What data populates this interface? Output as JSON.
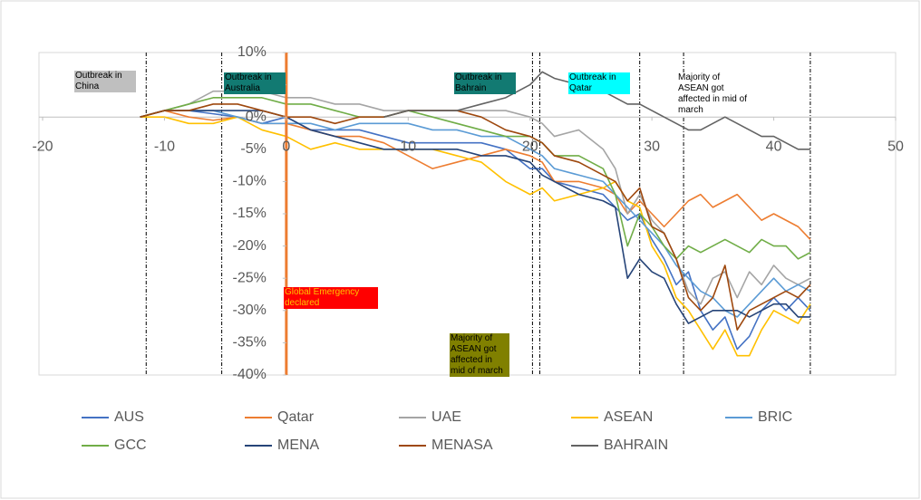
{
  "chart_data": {
    "type": "line",
    "x": [
      -12,
      -10,
      -8,
      -6,
      -4,
      -2,
      0,
      2,
      4,
      6,
      8,
      10,
      12,
      14,
      16,
      18,
      20,
      21,
      22,
      24,
      26,
      27,
      28,
      29,
      30,
      31,
      32,
      33,
      34,
      35,
      36,
      37,
      38,
      39,
      40,
      41,
      42,
      43
    ],
    "series": [
      {
        "name": "AUS",
        "color": "#4472c4",
        "values": [
          0,
          1,
          1,
          0.5,
          0,
          -1,
          0,
          -2,
          -2,
          -2,
          -3,
          -4,
          -4,
          -4,
          -4,
          -5,
          -8,
          -8,
          -10,
          -11,
          -12,
          -14,
          -16,
          -15,
          -19,
          -22,
          -26,
          -24,
          -30,
          -33,
          -31,
          -36,
          -34,
          -30,
          -28,
          -30,
          -28,
          -30
        ]
      },
      {
        "name": "Qatar",
        "color": "#ed7d31",
        "values": [
          0,
          1,
          0,
          -0.5,
          0,
          -1,
          -1,
          -2,
          -3,
          -3,
          -4,
          -6,
          -8,
          -7,
          -6,
          -5,
          -6,
          -7,
          -10,
          -10,
          -11,
          -12,
          -15,
          -13,
          -15,
          -17,
          -15,
          -13,
          -12,
          -14,
          -13,
          -12,
          -14,
          -16,
          -15,
          -16,
          -17,
          -19
        ]
      },
      {
        "name": "UAE",
        "color": "#a5a5a5",
        "values": [
          0,
          1,
          2,
          4,
          4,
          4,
          3,
          3,
          2,
          2,
          1,
          1,
          1,
          1,
          1,
          1,
          0,
          -1,
          -3,
          -2,
          -5,
          -8,
          -15,
          -12,
          -16,
          -18,
          -22,
          -27,
          -29,
          -25,
          -24,
          -28,
          -24,
          -26,
          -23,
          -25,
          -26,
          -25
        ]
      },
      {
        "name": "ASEAN",
        "color": "#ffc000",
        "values": [
          0,
          0,
          -1,
          -1,
          0,
          -2,
          -3,
          -5,
          -4,
          -5,
          -5,
          -5,
          -5,
          -6,
          -7,
          -10,
          -12,
          -11,
          -13,
          -12,
          -11,
          -10,
          -13,
          -14,
          -20,
          -23,
          -28,
          -30,
          -33,
          -36,
          -33,
          -37,
          -37,
          -33,
          -30,
          -31,
          -32,
          -29
        ]
      },
      {
        "name": "BRIC",
        "color": "#5b9bd5",
        "values": [
          0,
          1,
          1,
          1,
          0,
          -1,
          -1,
          -1,
          -2,
          -1,
          -1,
          -1,
          -2,
          -2,
          -3,
          -3,
          -5,
          -6,
          -8,
          -9,
          -10,
          -12,
          -14,
          -16,
          -18,
          -20,
          -23,
          -25,
          -27,
          -28,
          -30,
          -31,
          -29,
          -27,
          -25,
          -27,
          -26,
          -27
        ]
      },
      {
        "name": "GCC",
        "color": "#70ad47",
        "values": [
          0,
          1,
          2,
          3,
          3,
          3,
          2,
          2,
          1,
          0,
          0,
          1,
          0,
          -1,
          -2,
          -3,
          -3,
          -4,
          -6,
          -6,
          -8,
          -12,
          -20,
          -15,
          -17,
          -20,
          -22,
          -20,
          -21,
          -20,
          -19,
          -20,
          -21,
          -19,
          -20,
          -20,
          -22,
          -21
        ]
      },
      {
        "name": "MENA",
        "color": "#264478",
        "values": [
          0,
          1,
          1,
          1,
          1,
          1,
          0,
          -2,
          -3,
          -4,
          -5,
          -5,
          -5,
          -5,
          -6,
          -6,
          -7,
          -9,
          -10,
          -12,
          -13,
          -14,
          -25,
          -22,
          -24,
          -25,
          -29,
          -32,
          -31,
          -30,
          -30,
          -30,
          -31,
          -30,
          -29,
          -29,
          -31,
          -31
        ]
      },
      {
        "name": "MENASA",
        "color": "#9e480e",
        "values": [
          0,
          1,
          1,
          2,
          2,
          1,
          0,
          0,
          -1,
          0,
          0,
          1,
          1,
          1,
          0,
          -2,
          -3,
          -4,
          -6,
          -7,
          -9,
          -10,
          -13,
          -11,
          -17,
          -18,
          -22,
          -28,
          -30,
          -28,
          -23,
          -33,
          -30,
          -29,
          -28,
          -27,
          -28,
          -26
        ]
      },
      {
        "name": "BAHRAIN",
        "color": "#636363",
        "values": [
          null,
          null,
          null,
          null,
          null,
          null,
          null,
          null,
          null,
          null,
          0,
          1,
          1,
          1,
          2,
          3,
          5,
          7,
          6,
          5,
          4,
          3,
          2,
          2,
          1,
          0,
          -1,
          -2,
          -2,
          -1,
          0,
          -1,
          -2,
          -3,
          -3,
          -4,
          -5,
          -5
        ]
      }
    ],
    "xlim": [
      -20,
      50
    ],
    "xticks": [
      -20,
      -10,
      0,
      10,
      20,
      30,
      40,
      50
    ],
    "ylim": [
      -40,
      10
    ],
    "yticks": [
      {
        "value": -40,
        "label": "-40%"
      },
      {
        "value": -35,
        "label": "-35%"
      },
      {
        "value": -30,
        "label": "-30%"
      },
      {
        "value": -25,
        "label": "-25%"
      },
      {
        "value": -20,
        "label": "-20%"
      },
      {
        "value": -15,
        "label": "-15%"
      },
      {
        "value": -10,
        "label": "-10%"
      },
      {
        "value": -5,
        "label": "-5%"
      },
      {
        "value": 0,
        "label": "0%"
      },
      {
        "value": 5,
        "label": "5%"
      },
      {
        "value": 10,
        "label": "10%"
      }
    ],
    "event_lines": [
      -11.5,
      -5.3,
      20.2,
      20.8,
      29,
      32.6,
      43
    ],
    "emergency_line": {
      "x": 0,
      "color": "#ed7d31"
    },
    "annotations": [
      {
        "text": "Outbreak in China",
        "background": "#bfbfbf",
        "color": "#000000"
      },
      {
        "text": "Outbreak in Australia",
        "background": "#127a72",
        "color": "#000000"
      },
      {
        "text": "Outbreak in Bahrain",
        "background": "#127a72",
        "color": "#000000"
      },
      {
        "text": "Outbreak in Qatar",
        "background": "#00ffff",
        "color": "#000000"
      },
      {
        "text": "Majority of ASEAN got affected in mid of march",
        "background": "#ffffff",
        "color": "#000000"
      },
      {
        "text": "Global Emergency declared",
        "background": "#ff0000",
        "color": "#ffc000"
      },
      {
        "text": "Majority of ASEAN got affected in mid of march",
        "background": "#808000",
        "color": "#000000"
      }
    ]
  }
}
